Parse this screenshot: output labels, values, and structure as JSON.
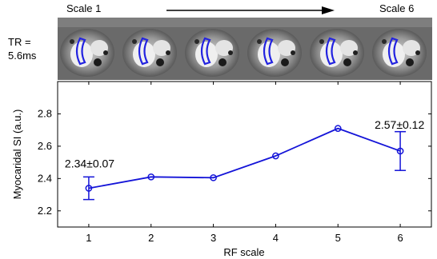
{
  "header": {
    "scale_start_label": "Scale 1",
    "scale_end_label": "Scale 6",
    "tr_label_line1": "TR =",
    "tr_label_line2": "5.6ms"
  },
  "thumbnails": [
    {
      "scale": 1
    },
    {
      "scale": 2
    },
    {
      "scale": 3
    },
    {
      "scale": 4
    },
    {
      "scale": 5
    },
    {
      "scale": 6
    }
  ],
  "colors": {
    "series": "#1414d8",
    "roi": "#2222e0",
    "axis": "#000000"
  },
  "chart_data": {
    "type": "line",
    "xlabel": "RF scale",
    "ylabel": "Myocaridal SI (a.u.)",
    "x": [
      1,
      2,
      3,
      4,
      5,
      6
    ],
    "xlim": [
      0.5,
      6.5
    ],
    "ylim": [
      2.1,
      3.0
    ],
    "xticks": [
      "1",
      "2",
      "3",
      "4",
      "5",
      "6"
    ],
    "yticks": [
      "2.2",
      "2.4",
      "2.6",
      "2.8"
    ],
    "grid": false,
    "series": [
      {
        "values": [
          2.34,
          2.41,
          2.405,
          2.54,
          2.71,
          2.57
        ],
        "error": [
          0.07,
          null,
          null,
          null,
          null,
          0.12
        ],
        "marker": "circle"
      }
    ],
    "annotations": [
      {
        "text": "2.34±0.07",
        "x": 1,
        "y": 2.34
      },
      {
        "text": "2.57±0.12",
        "x": 6,
        "y": 2.57
      }
    ]
  }
}
